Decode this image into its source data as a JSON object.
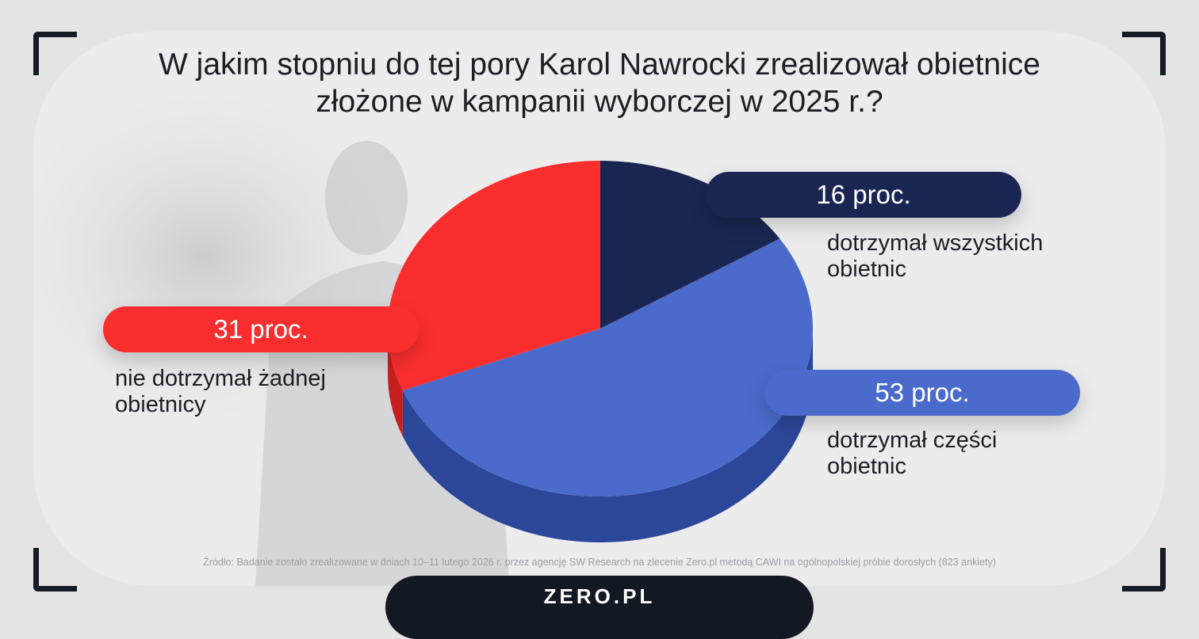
{
  "chart_data": {
    "type": "pie",
    "title": "W jakim stopniu do tej pory Karol Nawrocki zrealizował obietnice złożone w kampanii wyborczej w 2025 r.?",
    "slices": [
      {
        "label": "dotrzymał wszystkich obietnic",
        "value": 16,
        "value_label": "16 proc.",
        "color": "#1a2651",
        "side_color": "#111a3a"
      },
      {
        "label": "dotrzymał części obietnic",
        "value": 53,
        "value_label": "53 proc.",
        "color": "#4a6bcb",
        "side_color": "#2c479a"
      },
      {
        "label": "nie dotrzymał żadnej obietnicy",
        "value": 31,
        "value_label": "31 proc.",
        "color": "#fa2e2e",
        "side_color": "#c51f1f"
      }
    ],
    "legend": "none"
  },
  "labels": {
    "s16": {
      "value": "16 proc.",
      "desc": [
        "dotrzymał wszystkich",
        "obietnic"
      ]
    },
    "s53": {
      "value": "53 proc.",
      "desc": [
        "dotrzymał części",
        "obietnic"
      ]
    },
    "s31": {
      "value": "31 proc.",
      "desc": [
        "nie dotrzymał żadnej",
        "obietnicy"
      ]
    }
  },
  "source": "Źródło: Badanie zostało zrealizowane w dniach 10–11 lutego 2026 r. przez agencję SW Research na zlecenie Zero.pl metodą CAWI na ogólnopolskiej próbie dorosłych (823 ankiety)",
  "brand": "ZERO.PL"
}
